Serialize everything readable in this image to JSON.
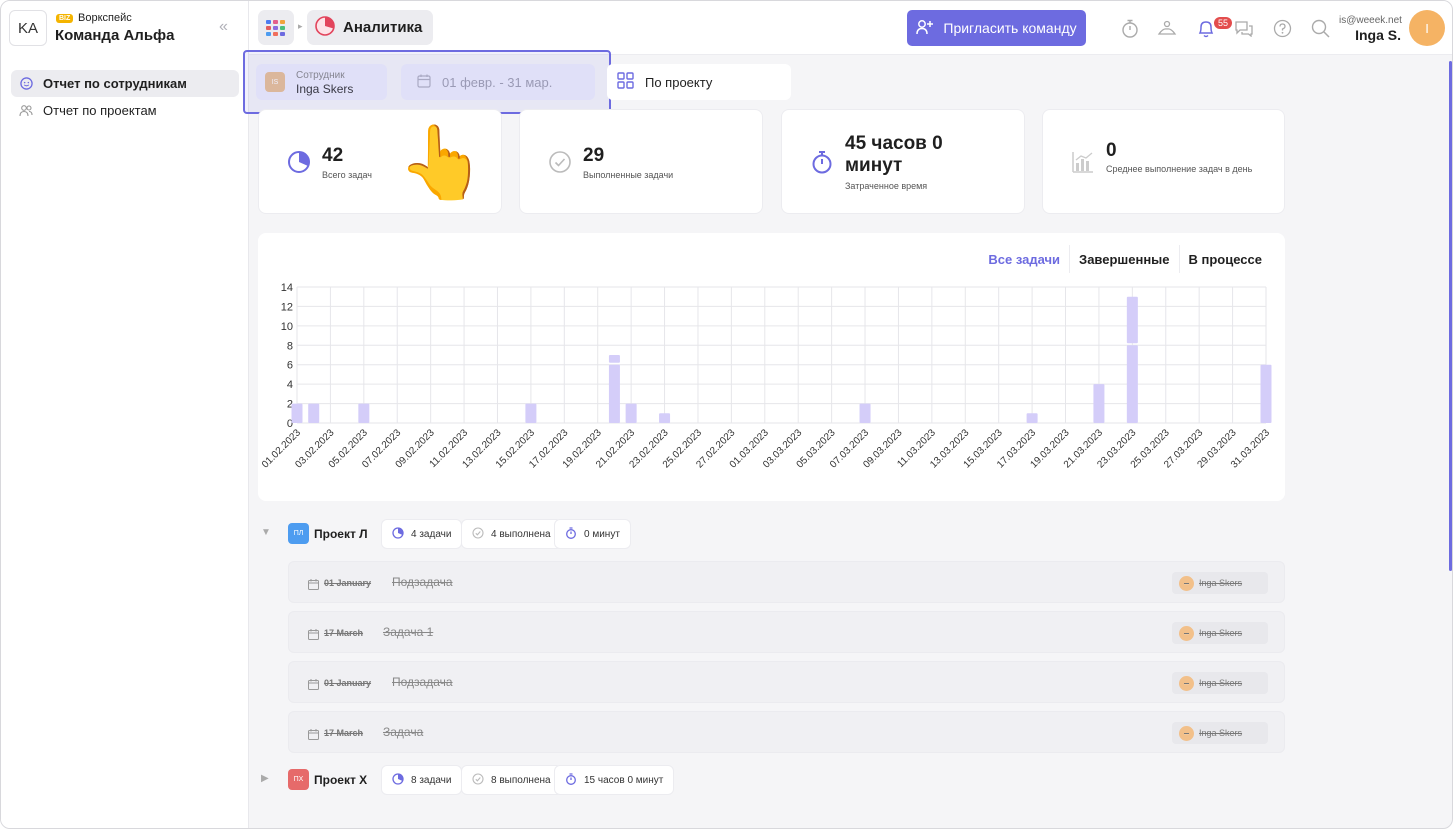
{
  "workspace": {
    "initials": "KA",
    "badge": "BIZ",
    "type": "Воркспейс",
    "name": "Команда Альфа"
  },
  "sidebar": {
    "items": [
      {
        "label": "Отчет по сотрудникам",
        "active": true
      },
      {
        "label": "Отчет по проектам",
        "active": false
      }
    ]
  },
  "topbar": {
    "breadcrumb": "Аналитика",
    "invite_label": "Пригласить команду",
    "notifications": "55",
    "user_email": "is@weeek.net",
    "user_name": "Inga S.",
    "user_initial": "I"
  },
  "filters": {
    "employee_label": "Сотрудник",
    "employee_value": "Inga Skers",
    "employee_initials": "IS",
    "date_range": "01 февр. - 31 мар.",
    "project_mode": "По проекту"
  },
  "stats": [
    {
      "value": "42",
      "label": "Всего задач",
      "icon": "pie-icon"
    },
    {
      "value": "29",
      "label": "Выполненные задачи",
      "icon": "check-circle-icon"
    },
    {
      "value": "45 часов 0 минут",
      "label": "Затраченное время",
      "icon": "stopwatch-icon"
    },
    {
      "value": "0",
      "label": "Среднее выполнение задач в день",
      "icon": "bar-chart-icon"
    }
  ],
  "chart_tabs": [
    "Все задачи",
    "Завершенные",
    "В процессе"
  ],
  "chart_data": {
    "type": "bar",
    "ylim": [
      0,
      14
    ],
    "yticks": [
      0,
      2,
      4,
      6,
      8,
      10,
      12,
      14
    ],
    "categories": [
      "01.02.2023",
      "02.02.2023",
      "03.02.2023",
      "04.02.2023",
      "05.02.2023",
      "06.02.2023",
      "07.02.2023",
      "08.02.2023",
      "09.02.2023",
      "10.02.2023",
      "11.02.2023",
      "12.02.2023",
      "13.02.2023",
      "14.02.2023",
      "15.02.2023",
      "16.02.2023",
      "17.02.2023",
      "18.02.2023",
      "19.02.2023",
      "20.02.2023",
      "21.02.2023",
      "22.02.2023",
      "23.02.2023",
      "24.02.2023",
      "25.02.2023",
      "26.02.2023",
      "27.02.2023",
      "28.02.2023",
      "01.03.2023",
      "02.03.2023",
      "03.03.2023",
      "04.03.2023",
      "05.03.2023",
      "06.03.2023",
      "07.03.2023",
      "08.03.2023",
      "09.03.2023",
      "10.03.2023",
      "11.03.2023",
      "12.03.2023",
      "13.03.2023",
      "14.03.2023",
      "15.03.2023",
      "16.03.2023",
      "17.03.2023",
      "18.03.2023",
      "19.03.2023",
      "20.03.2023",
      "21.03.2023",
      "22.03.2023",
      "23.03.2023",
      "24.03.2023",
      "25.03.2023",
      "26.03.2023",
      "27.03.2023",
      "28.03.2023",
      "29.03.2023",
      "30.03.2023",
      "31.03.2023"
    ],
    "series": [
      {
        "values": [
          2,
          2,
          0,
          0,
          2,
          0,
          0,
          0,
          0,
          0,
          0,
          0,
          0,
          0,
          2,
          0,
          0,
          0,
          0,
          6,
          2,
          0,
          1,
          0,
          0,
          0,
          0,
          0,
          0,
          0,
          0,
          0,
          0,
          0,
          2,
          0,
          0,
          0,
          0,
          0,
          0,
          0,
          0,
          0,
          1,
          0,
          0,
          0,
          4,
          0,
          8,
          0,
          0,
          0,
          0,
          0,
          0,
          0,
          6
        ]
      },
      {
        "values": [
          0,
          0,
          0,
          0,
          0,
          0,
          0,
          0,
          0,
          0,
          0,
          0,
          0,
          0,
          0,
          0,
          0,
          0,
          0,
          1,
          0,
          0,
          0,
          0,
          0,
          0,
          0,
          0,
          0,
          0,
          0,
          0,
          0,
          0,
          0,
          0,
          0,
          0,
          0,
          0,
          0,
          0,
          0,
          0,
          0,
          0,
          0,
          0,
          0,
          0,
          5,
          0,
          0,
          0,
          0,
          0,
          0,
          0,
          0
        ]
      }
    ]
  },
  "projects": [
    {
      "initials": "ПЛ",
      "name": "Проект Л",
      "color": "#4d9cf0",
      "expanded": true,
      "tasks_label": "4 задачи",
      "done_label": "4 выполнена",
      "time_label": "0 минут",
      "tasks": [
        {
          "date": "01 January",
          "title": "Подзадача",
          "assignee": "Inga Skers"
        },
        {
          "date": "17 March",
          "title": "Задача 1",
          "assignee": "Inga Skers"
        },
        {
          "date": "01 January",
          "title": "Подзадача",
          "assignee": "Inga Skers"
        },
        {
          "date": "17 March",
          "title": "Задача",
          "assignee": "Inga Skers"
        }
      ]
    },
    {
      "initials": "ПХ",
      "name": "Проект Х",
      "color": "#e66a6a",
      "expanded": false,
      "tasks_label": "8 задачи",
      "done_label": "8 выполнена",
      "time_label": "15 часов 0 минут",
      "tasks": []
    }
  ],
  "colors": {
    "accent": "#6d6be0",
    "bar": "#d4cdf9"
  }
}
